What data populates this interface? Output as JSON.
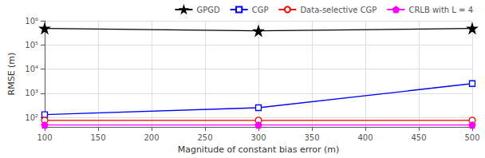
{
  "chart_data": {
    "type": "line",
    "xlabel": "Magnitude of constant bias error (m)",
    "ylabel": "RMSE (m)",
    "x": [
      100,
      300,
      500
    ],
    "series": [
      {
        "name": "GPGD",
        "color": "#000000",
        "marker": "star",
        "values": [
          480000,
          380000,
          480000
        ]
      },
      {
        "name": "CGP",
        "color": "#0000ff",
        "marker": "open_square",
        "values": [
          130,
          250,
          2500
        ]
      },
      {
        "name": "Data-selective CGP",
        "color": "#ff0000",
        "marker": "open_circle",
        "values": [
          75,
          75,
          75
        ]
      },
      {
        "name": "CRLB with L = 4",
        "color": "#ff00ff",
        "marker": "pentagon",
        "values": [
          48,
          48,
          48
        ]
      }
    ],
    "xlim": [
      100,
      500
    ],
    "ylim": [
      40,
      1000000
    ],
    "xticks": [
      100,
      150,
      200,
      250,
      300,
      350,
      400,
      450,
      500
    ],
    "yticks": [
      {
        "value": 100,
        "label": "10²"
      },
      {
        "value": 1000,
        "label": "10³"
      },
      {
        "value": 10000,
        "label": "10⁴"
      },
      {
        "value": 100000,
        "label": "10⁵"
      },
      {
        "value": 1000000,
        "label": "10⁶"
      }
    ],
    "log": "y",
    "grid": true,
    "legend": "upper right"
  }
}
